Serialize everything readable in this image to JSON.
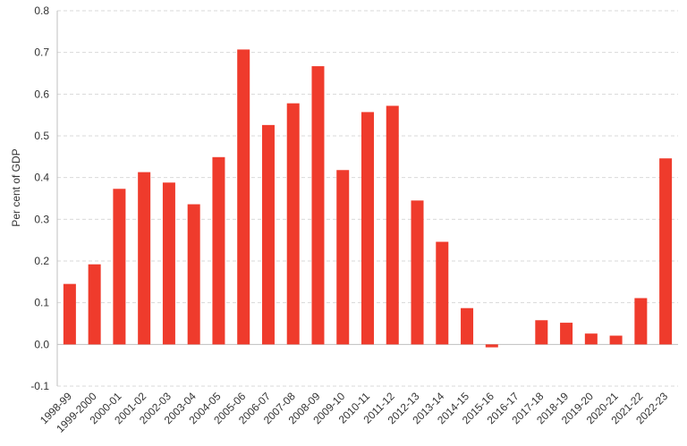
{
  "chart_data": {
    "type": "bar",
    "categories": [
      "1998-99",
      "1999-2000",
      "2000-01",
      "2001-02",
      "2002-03",
      "2003-04",
      "2004-05",
      "2005-06",
      "2006-07",
      "2007-08",
      "2008-09",
      "2009-10",
      "2010-11",
      "2011-12",
      "2012-13",
      "2013-14",
      "2014-15",
      "2015-16",
      "2016-17",
      "2017-18",
      "2018-19",
      "2019-20",
      "2020-21",
      "2021-22",
      "2022-23"
    ],
    "values": [
      0.145,
      0.192,
      0.373,
      0.413,
      0.388,
      0.336,
      0.449,
      0.707,
      0.526,
      0.578,
      0.667,
      0.418,
      0.557,
      0.572,
      0.345,
      0.246,
      0.087,
      -0.007,
      0.0,
      0.058,
      0.052,
      0.026,
      0.021,
      0.111,
      0.446
    ],
    "ylabel": "Per cent of GDP",
    "ylim": [
      -0.1,
      0.8
    ],
    "yticks": [
      "-0.1",
      "0.0",
      "0.1",
      "0.2",
      "0.3",
      "0.4",
      "0.5",
      "0.6",
      "0.7",
      "0.8"
    ],
    "grid": true,
    "colors": {
      "bar": "#ef3b2c",
      "grid": "#d9d9d9",
      "axis": "#bfbfbf"
    }
  }
}
